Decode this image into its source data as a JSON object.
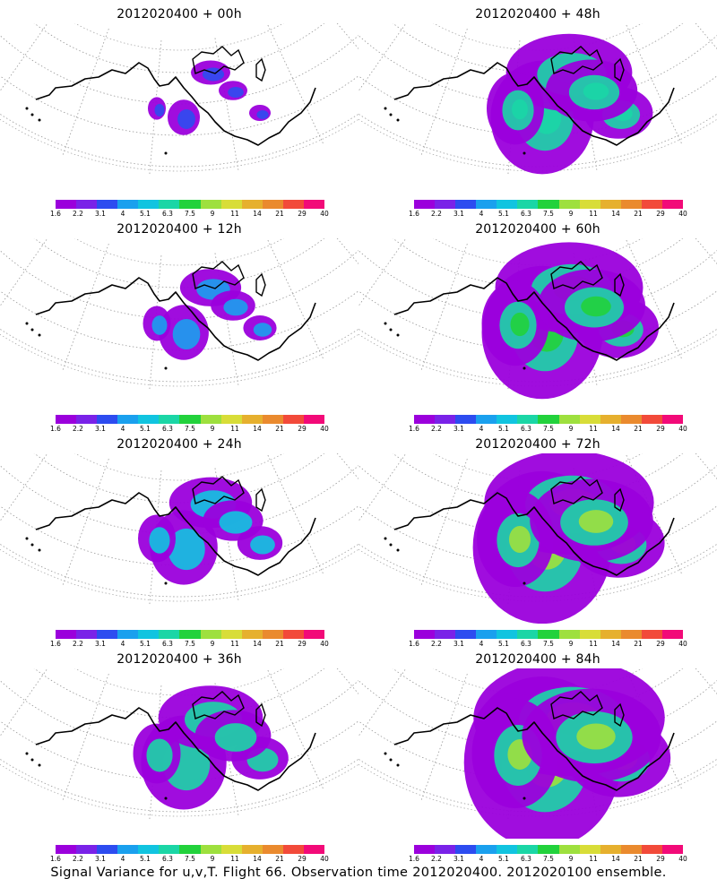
{
  "panels": [
    {
      "title": "2012020400 + 00h",
      "level": 0
    },
    {
      "title": "2012020400 + 48h",
      "level": 4
    },
    {
      "title": "2012020400 + 12h",
      "level": 1
    },
    {
      "title": "2012020400 + 60h",
      "level": 5
    },
    {
      "title": "2012020400 + 24h",
      "level": 2
    },
    {
      "title": "2012020400 + 72h",
      "level": 6
    },
    {
      "title": "2012020400 + 36h",
      "level": 3
    },
    {
      "title": "2012020400 + 84h",
      "level": 7
    }
  ],
  "colorbar": {
    "ticks": [
      "1.6",
      "2.2",
      "3.1",
      "4",
      "5.1",
      "6.3",
      "7.5",
      "9",
      "11",
      "14",
      "21",
      "29",
      "40"
    ],
    "colors": [
      "#9b00dc",
      "#7a22e8",
      "#2d4cf0",
      "#1aa0ee",
      "#11c4e0",
      "#1bd6a6",
      "#22d23c",
      "#9ee03e",
      "#d8dd38",
      "#e6b02e",
      "#ea8a2e",
      "#f24a3a",
      "#f20a78"
    ]
  },
  "caption": "Signal Variance for u,v,T. Flight 66. Observation time 2012020400. 2012020100 ensemble."
}
